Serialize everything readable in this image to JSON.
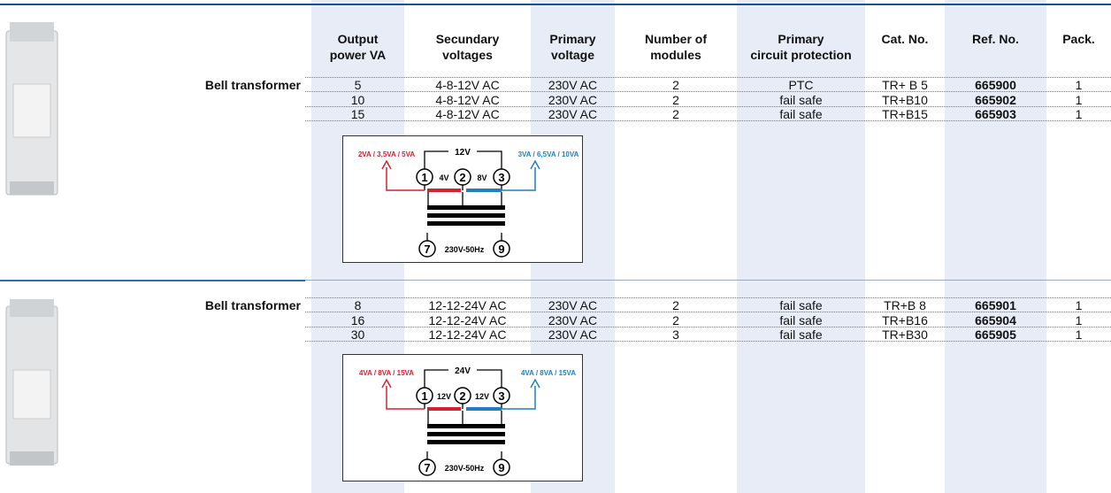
{
  "header": {
    "columns": [
      [
        "Output",
        "power VA"
      ],
      [
        "Secundary",
        "voltages"
      ],
      [
        "Primary",
        "voltage"
      ],
      [
        "Number of",
        "modules"
      ],
      [
        "Primary",
        "circuit protection"
      ],
      [
        "Cat. No."
      ],
      [
        "Ref. No."
      ],
      [
        "Pack."
      ]
    ]
  },
  "sections": [
    {
      "label": "Bell transformer",
      "rows": [
        [
          "5",
          "4-8-12V AC",
          "230V AC",
          "2",
          "PTC",
          "TR+ B 5",
          "665900",
          "1"
        ],
        [
          "10",
          "4-8-12V AC",
          "230V AC",
          "2",
          "fail safe",
          "TR+B10",
          "665902",
          "1"
        ],
        [
          "15",
          "4-8-12V AC",
          "230V AC",
          "2",
          "fail safe",
          "TR+B15",
          "665903",
          "1"
        ]
      ],
      "diagram": {
        "left_output": "2VA / 3,5VA / 5VA",
        "right_output": "3VA / 6,5VA / 10VA",
        "total": "12V",
        "left_voltage": "4V",
        "right_voltage": "8V",
        "terminals": [
          "1",
          "2",
          "3",
          "7",
          "9"
        ],
        "primary": "230V-50Hz"
      }
    },
    {
      "label": "Bell transformer",
      "rows": [
        [
          "8",
          "12-12-24V AC",
          "230V AC",
          "2",
          "fail safe",
          "TR+B 8",
          "665901",
          "1"
        ],
        [
          "16",
          "12-12-24V AC",
          "230V AC",
          "2",
          "fail safe",
          "TR+B16",
          "665904",
          "1"
        ],
        [
          "30",
          "12-12-24V AC",
          "230V AC",
          "3",
          "fail safe",
          "TR+B30",
          "665905",
          "1"
        ]
      ],
      "diagram": {
        "left_output": "4VA / 8VA / 15VA",
        "right_output": "4VA / 8VA / 15VA",
        "total": "24V",
        "left_voltage": "12V",
        "right_voltage": "12V",
        "terminals": [
          "1",
          "2",
          "3",
          "7",
          "9"
        ],
        "primary": "230V-50Hz"
      }
    }
  ]
}
